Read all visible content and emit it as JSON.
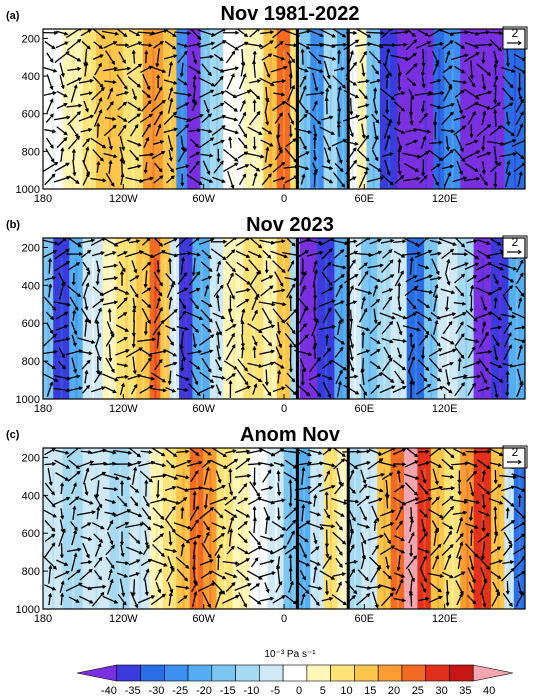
{
  "chart_data": [
    {
      "type": "heatmap",
      "panel_label": "(a)",
      "title": "Nov 1981-2022",
      "x_ticks": [
        "180",
        "120W",
        "60W",
        "0",
        "60E",
        "120E"
      ],
      "y_ticks": [
        "200",
        "400",
        "600",
        "800",
        "1000"
      ],
      "ylim": [
        1000,
        150
      ],
      "xlim": [
        -180,
        180
      ],
      "vector_reference": "2",
      "vertical_lines_lon": [
        10,
        48
      ],
      "bands": [
        {
          "lon": -180,
          "value": 0
        },
        {
          "lon": -165,
          "value": 5
        },
        {
          "lon": -150,
          "value": 10
        },
        {
          "lon": -140,
          "value": 15
        },
        {
          "lon": -120,
          "value": 10
        },
        {
          "lon": -105,
          "value": 20
        },
        {
          "lon": -90,
          "value": 15
        },
        {
          "lon": -80,
          "value": -25
        },
        {
          "lon": -72,
          "value": -40
        },
        {
          "lon": -62,
          "value": -15
        },
        {
          "lon": -55,
          "value": -10
        },
        {
          "lon": -45,
          "value": 0
        },
        {
          "lon": -30,
          "value": 5
        },
        {
          "lon": -15,
          "value": 15
        },
        {
          "lon": -5,
          "value": 25
        },
        {
          "lon": 5,
          "value": 10
        },
        {
          "lon": 12,
          "value": -15
        },
        {
          "lon": 20,
          "value": -25
        },
        {
          "lon": 30,
          "value": -10
        },
        {
          "lon": 40,
          "value": -20
        },
        {
          "lon": 48,
          "value": 0
        },
        {
          "lon": 55,
          "value": 5
        },
        {
          "lon": 62,
          "value": -15
        },
        {
          "lon": 72,
          "value": -35
        },
        {
          "lon": 85,
          "value": -40
        },
        {
          "lon": 100,
          "value": -40
        },
        {
          "lon": 112,
          "value": -30
        },
        {
          "lon": 120,
          "value": -25
        },
        {
          "lon": 132,
          "value": -40
        },
        {
          "lon": 150,
          "value": -40
        },
        {
          "lon": 165,
          "value": -30
        },
        {
          "lon": 180,
          "value": -15
        }
      ]
    },
    {
      "type": "heatmap",
      "panel_label": "(b)",
      "title": "Nov 2023",
      "x_ticks": [
        "180",
        "120W",
        "60W",
        "0",
        "60E",
        "120E"
      ],
      "y_ticks": [
        "200",
        "400",
        "600",
        "800",
        "1000"
      ],
      "ylim": [
        1000,
        150
      ],
      "xlim": [
        -180,
        180
      ],
      "vector_reference": "2",
      "vertical_lines_lon": [
        10,
        48
      ],
      "bands": [
        {
          "lon": -180,
          "value": -15
        },
        {
          "lon": -172,
          "value": -35
        },
        {
          "lon": -160,
          "value": -20
        },
        {
          "lon": -150,
          "value": -5
        },
        {
          "lon": -135,
          "value": 5
        },
        {
          "lon": -125,
          "value": 10
        },
        {
          "lon": -110,
          "value": 15
        },
        {
          "lon": -100,
          "value": 25
        },
        {
          "lon": -92,
          "value": 15
        },
        {
          "lon": -85,
          "value": -5
        },
        {
          "lon": -78,
          "value": -35
        },
        {
          "lon": -68,
          "value": -20
        },
        {
          "lon": -55,
          "value": -5
        },
        {
          "lon": -45,
          "value": 5
        },
        {
          "lon": -30,
          "value": 10
        },
        {
          "lon": -15,
          "value": 5
        },
        {
          "lon": -5,
          "value": 15
        },
        {
          "lon": 5,
          "value": -10
        },
        {
          "lon": 12,
          "value": -40
        },
        {
          "lon": 25,
          "value": -35
        },
        {
          "lon": 38,
          "value": -20
        },
        {
          "lon": 48,
          "value": -5
        },
        {
          "lon": 58,
          "value": -15
        },
        {
          "lon": 70,
          "value": -10
        },
        {
          "lon": 80,
          "value": -5
        },
        {
          "lon": 92,
          "value": -30
        },
        {
          "lon": 105,
          "value": -15
        },
        {
          "lon": 115,
          "value": -5
        },
        {
          "lon": 130,
          "value": -10
        },
        {
          "lon": 142,
          "value": -40
        },
        {
          "lon": 155,
          "value": -35
        },
        {
          "lon": 168,
          "value": -20
        },
        {
          "lon": 180,
          "value": -10
        }
      ]
    },
    {
      "type": "heatmap",
      "panel_label": "(c)",
      "title": "Anom Nov",
      "x_ticks": [
        "180",
        "120W",
        "60W",
        "0",
        "60E",
        "120E"
      ],
      "y_ticks": [
        "200",
        "400",
        "600",
        "800",
        "1000"
      ],
      "ylim": [
        1000,
        150
      ],
      "xlim": [
        -180,
        180
      ],
      "vector_reference": "2",
      "vertical_lines_lon": [
        10,
        48
      ],
      "bands": [
        {
          "lon": -180,
          "value": -5
        },
        {
          "lon": -165,
          "value": -10
        },
        {
          "lon": -150,
          "value": -5
        },
        {
          "lon": -130,
          "value": -10
        },
        {
          "lon": -115,
          "value": -5
        },
        {
          "lon": -100,
          "value": 5
        },
        {
          "lon": -90,
          "value": 10
        },
        {
          "lon": -80,
          "value": 15
        },
        {
          "lon": -70,
          "value": 25
        },
        {
          "lon": -60,
          "value": 20
        },
        {
          "lon": -50,
          "value": 10
        },
        {
          "lon": -38,
          "value": 5
        },
        {
          "lon": -25,
          "value": 0
        },
        {
          "lon": -12,
          "value": -5
        },
        {
          "lon": 0,
          "value": -15
        },
        {
          "lon": 10,
          "value": -20
        },
        {
          "lon": 20,
          "value": -5
        },
        {
          "lon": 30,
          "value": 10
        },
        {
          "lon": 40,
          "value": 5
        },
        {
          "lon": 48,
          "value": -10
        },
        {
          "lon": 58,
          "value": -5
        },
        {
          "lon": 70,
          "value": 15
        },
        {
          "lon": 80,
          "value": 25
        },
        {
          "lon": 90,
          "value": 40
        },
        {
          "lon": 100,
          "value": 30
        },
        {
          "lon": 110,
          "value": 15
        },
        {
          "lon": 120,
          "value": 10
        },
        {
          "lon": 132,
          "value": 20
        },
        {
          "lon": 142,
          "value": 30
        },
        {
          "lon": 155,
          "value": 15
        },
        {
          "lon": 165,
          "value": -5
        },
        {
          "lon": 172,
          "value": -30
        },
        {
          "lon": 180,
          "value": -20
        }
      ]
    }
  ],
  "colorbar": {
    "units": "10⁻³ Pa s⁻¹",
    "labels": [
      "-40",
      "-35",
      "-30",
      "-25",
      "-20",
      "-15",
      "-10",
      "-5",
      "0",
      "5",
      "10",
      "15",
      "20",
      "25",
      "30",
      "35",
      "40"
    ],
    "colors": [
      "#7a2fe0",
      "#3b3bdd",
      "#2a6ee6",
      "#3c8ff0",
      "#56aef2",
      "#7cc6f2",
      "#a6daf2",
      "#cfe9f6",
      "#ffffff",
      "#fff6b8",
      "#fde276",
      "#fcc64a",
      "#fb9d32",
      "#f26a23",
      "#e3301d",
      "#c71616",
      "#f4a6b0"
    ]
  }
}
